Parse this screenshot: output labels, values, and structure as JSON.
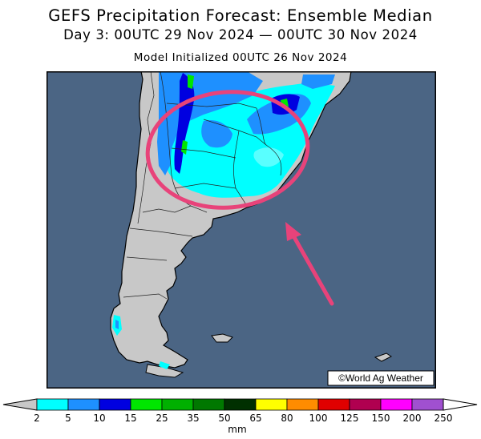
{
  "header": {
    "title": "GEFS Precipitation Forecast: Ensemble Median",
    "period": "Day 3: 00UTC 29 Nov 2024 — 00UTC 30 Nov 2024",
    "initialized": "Model Initialized 00UTC 26 Nov 2024"
  },
  "map": {
    "region": "Southern South America",
    "ocean_color": "#4b6584",
    "land_color": "#c8c8c8",
    "credit": "©World Ag Weather",
    "highlight_color": "#e8437a"
  },
  "legend": {
    "unit": "mm",
    "ticks": [
      "2",
      "5",
      "10",
      "15",
      "25",
      "35",
      "50",
      "65",
      "80",
      "100",
      "125",
      "150",
      "200",
      "250"
    ],
    "colors": [
      "#00ffff",
      "#1e90ff",
      "#0000e0",
      "#00e600",
      "#00b000",
      "#007800",
      "#003000",
      "#ffff00",
      "#ff8c00",
      "#e00000",
      "#b00050",
      "#ff00ff",
      "#a050d0"
    ],
    "below_min_color": "#c8c8c8",
    "above_max_color": "#ffffff"
  }
}
